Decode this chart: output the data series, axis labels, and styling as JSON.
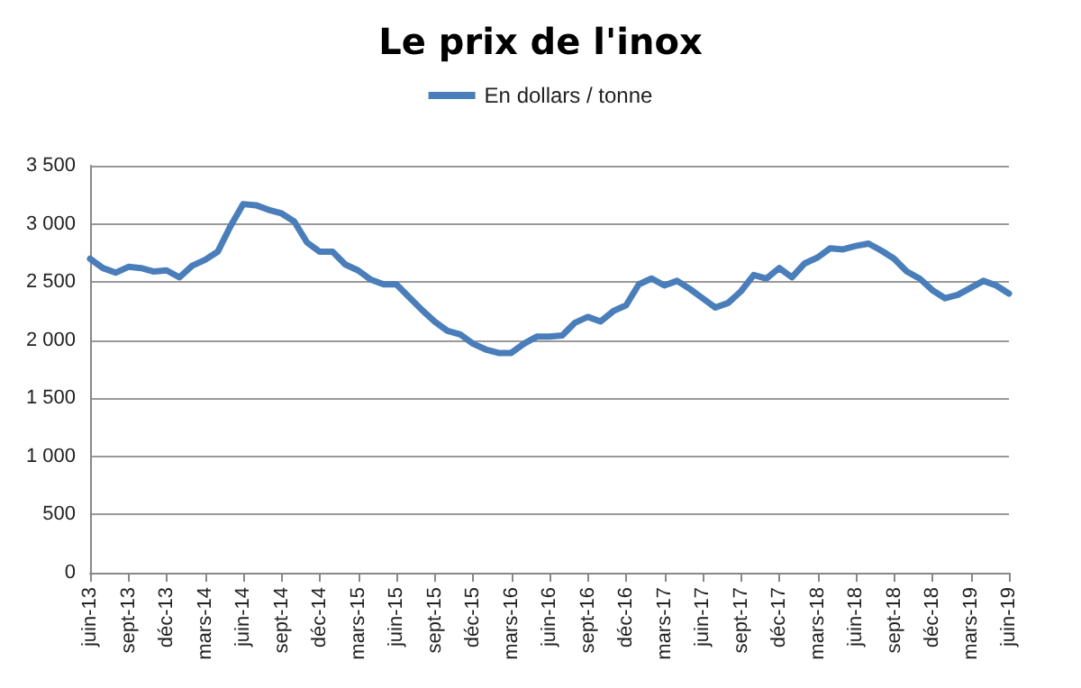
{
  "chart_data": {
    "type": "line",
    "title": "Le prix de l'inox",
    "categories": [
      "juin-13",
      null,
      null,
      "sept-13",
      null,
      null,
      "déc-13",
      null,
      null,
      "mars-14",
      null,
      null,
      "juin-14",
      null,
      null,
      "sept-14",
      null,
      null,
      "déc-14",
      null,
      null,
      "mars-15",
      null,
      null,
      "juin-15",
      null,
      null,
      "sept-15",
      null,
      null,
      "déc-15",
      null,
      null,
      "mars-16",
      null,
      null,
      "juin-16",
      null,
      null,
      "sept-16",
      null,
      null,
      "déc-16",
      null,
      null,
      "mars-17",
      null,
      null,
      "juin-17",
      null,
      null,
      "sept-17",
      null,
      null,
      "déc-17",
      null,
      null,
      "mars-18",
      null,
      null,
      "juin-18",
      null,
      null,
      "sept-18",
      null,
      null,
      "déc-18",
      null,
      null,
      "mars-19",
      null,
      null,
      "juin-19"
    ],
    "series": [
      {
        "name": "En dollars / tonne",
        "color": "#4a7ebb",
        "values": [
          2700,
          2620,
          2580,
          2630,
          2620,
          2590,
          2600,
          2540,
          2640,
          2690,
          2760,
          2980,
          3170,
          3160,
          3120,
          3090,
          3020,
          2840,
          2760,
          2760,
          2650,
          2600,
          2520,
          2480,
          2480,
          2370,
          2260,
          2160,
          2080,
          2050,
          1970,
          1920,
          1890,
          1890,
          1970,
          2030,
          2030,
          2040,
          2150,
          2200,
          2160,
          2250,
          2300,
          2480,
          2530,
          2470,
          2510,
          2440,
          2360,
          2280,
          2320,
          2420,
          2560,
          2530,
          2620,
          2540,
          2660,
          2710,
          2790,
          2780,
          2810,
          2830,
          2770,
          2700,
          2590,
          2530,
          2430,
          2360,
          2390,
          2450,
          2510,
          2470,
          2400
        ]
      }
    ],
    "ylim": [
      0,
      3500
    ],
    "yticks": [
      0,
      500,
      {
        "value": 1000,
        "label": "1 000"
      },
      {
        "value": 1500,
        "label": "1 500"
      },
      {
        "value": 2000,
        "label": "2 000"
      },
      {
        "value": 2500,
        "label": "2 500"
      },
      {
        "value": 3000,
        "label": "3 000"
      },
      {
        "value": 3500,
        "label": "3 500"
      }
    ],
    "grid": "y",
    "legend": "top",
    "marker": "none",
    "line_style": "solid"
  }
}
